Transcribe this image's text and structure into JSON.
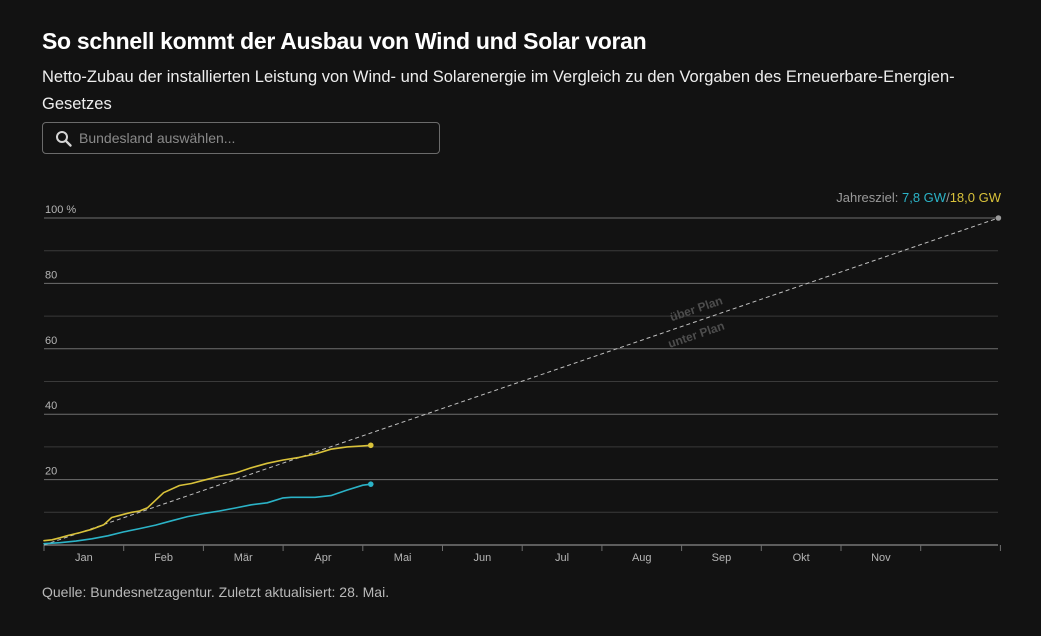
{
  "header": {
    "title": "So schnell kommt der Ausbau von Wind und Solar voran",
    "subtitle": "Netto-Zubau der installierten Leistung von Wind- und Solarenergie im Vergleich zu den Vorgaben des Erneuerbare-Energien-Gesetzes"
  },
  "search": {
    "placeholder": "Bundesland auswählen..."
  },
  "footer": {
    "source": "Quelle: Bundesnetzagentur. Zuletzt aktualisiert: 28. Mai."
  },
  "colors": {
    "wind": "#2bb3c7",
    "solar": "#d9c23a",
    "plan": "#bfbfbf",
    "grid": "#6a6a6a",
    "text": "#b0b0b0"
  },
  "chart_data": {
    "type": "line",
    "ylabel": "",
    "ylim": [
      0,
      100
    ],
    "y_unit_suffix": "%",
    "y_ticks": [
      20,
      40,
      60,
      80,
      100
    ],
    "x_ticks": [
      "Jan",
      "Feb",
      "Mär",
      "Apr",
      "Mai",
      "Jun",
      "Jul",
      "Aug",
      "Sep",
      "Okt",
      "Nov"
    ],
    "grid": true,
    "annotation": {
      "prefix": "Jahresziel:",
      "wind": "7,8 GW",
      "separator": "/",
      "solar": "18,0 GW"
    },
    "plan_labels": {
      "above": "über Plan",
      "below": "unter Plan"
    },
    "series": [
      {
        "key": "solar",
        "x": [
          0,
          0.1,
          0.2,
          0.3,
          0.45,
          0.6,
          0.75,
          0.85,
          1.0,
          1.1,
          1.2,
          1.3,
          1.5,
          1.7,
          1.85,
          2.0,
          2.2,
          2.4,
          2.6,
          2.8,
          3.0,
          3.2,
          3.4,
          3.6,
          3.8,
          4.0,
          4.1
        ],
        "values": [
          1.3,
          1.6,
          2.2,
          2.9,
          3.8,
          4.8,
          6.2,
          8.4,
          9.4,
          10.0,
          10.4,
          11.4,
          16.0,
          18.2,
          18.8,
          19.8,
          21.0,
          22.0,
          23.6,
          25.0,
          26.0,
          26.8,
          27.8,
          29.3,
          30.0,
          30.3,
          30.5
        ]
      },
      {
        "key": "wind",
        "x": [
          0,
          0.2,
          0.4,
          0.6,
          0.8,
          1.0,
          1.2,
          1.4,
          1.6,
          1.8,
          2.0,
          2.2,
          2.4,
          2.6,
          2.8,
          3.0,
          3.1,
          3.2,
          3.4,
          3.6,
          3.8,
          4.0,
          4.1
        ],
        "values": [
          0.4,
          0.7,
          1.2,
          1.9,
          2.8,
          4.0,
          5.0,
          6.1,
          7.4,
          8.7,
          9.6,
          10.4,
          11.3,
          12.3,
          12.9,
          14.4,
          14.6,
          14.6,
          14.6,
          15.1,
          16.8,
          18.3,
          18.6
        ]
      }
    ],
    "plan": {
      "x": [
        0,
        12
      ],
      "values": [
        0,
        100
      ]
    }
  }
}
